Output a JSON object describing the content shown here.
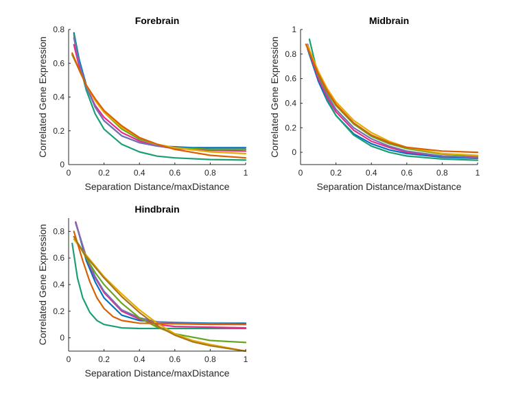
{
  "chart_data": [
    {
      "type": "line",
      "title": "Forebrain",
      "xlabel": "Separation Distance/maxDistance",
      "ylabel": "Correlated Gene Expression",
      "xlim": [
        0,
        1
      ],
      "ylim": [
        0,
        0.8
      ],
      "xticks": [
        "0",
        "0.2",
        "0.4",
        "0.6",
        "0.8",
        "1"
      ],
      "yticks": [
        "0",
        "0.2",
        "0.4",
        "0.6",
        "0.8"
      ],
      "grid": false,
      "series": [
        {
          "color": "#0072BD",
          "values": [
            [
              0.03,
              0.78
            ],
            [
              0.06,
              0.62
            ],
            [
              0.1,
              0.47
            ],
            [
              0.15,
              0.34
            ],
            [
              0.2,
              0.26
            ],
            [
              0.3,
              0.17
            ],
            [
              0.4,
              0.13
            ],
            [
              0.5,
              0.11
            ],
            [
              0.6,
              0.105
            ],
            [
              0.7,
              0.1
            ],
            [
              0.8,
              0.1
            ],
            [
              1.0,
              0.1
            ]
          ]
        },
        {
          "color": "#1B9E77",
          "values": [
            [
              0.03,
              0.77
            ],
            [
              0.06,
              0.6
            ],
            [
              0.1,
              0.44
            ],
            [
              0.15,
              0.3
            ],
            [
              0.2,
              0.21
            ],
            [
              0.3,
              0.12
            ],
            [
              0.4,
              0.075
            ],
            [
              0.5,
              0.05
            ],
            [
              0.6,
              0.04
            ],
            [
              0.8,
              0.03
            ],
            [
              1.0,
              0.027
            ]
          ]
        },
        {
          "color": "#E7298A",
          "values": [
            [
              0.03,
              0.71
            ],
            [
              0.06,
              0.58
            ],
            [
              0.1,
              0.46
            ],
            [
              0.15,
              0.35
            ],
            [
              0.2,
              0.28
            ],
            [
              0.3,
              0.19
            ],
            [
              0.4,
              0.14
            ],
            [
              0.5,
              0.11
            ],
            [
              0.6,
              0.095
            ],
            [
              0.8,
              0.085
            ],
            [
              1.0,
              0.08
            ]
          ]
        },
        {
          "color": "#7570B3",
          "values": [
            [
              0.03,
              0.75
            ],
            [
              0.06,
              0.6
            ],
            [
              0.1,
              0.46
            ],
            [
              0.15,
              0.34
            ],
            [
              0.2,
              0.26
            ],
            [
              0.3,
              0.17
            ],
            [
              0.4,
              0.13
            ],
            [
              0.5,
              0.11
            ],
            [
              0.6,
              0.1
            ],
            [
              0.8,
              0.09
            ],
            [
              1.0,
              0.09
            ]
          ]
        },
        {
          "color": "#66A61E",
          "values": [
            [
              0.02,
              0.65
            ],
            [
              0.06,
              0.56
            ],
            [
              0.1,
              0.47
            ],
            [
              0.15,
              0.38
            ],
            [
              0.2,
              0.31
            ],
            [
              0.3,
              0.21
            ],
            [
              0.4,
              0.15
            ],
            [
              0.5,
              0.12
            ],
            [
              0.6,
              0.1
            ],
            [
              0.8,
              0.09
            ],
            [
              1.0,
              0.09
            ]
          ]
        },
        {
          "color": "#E6AB02",
          "values": [
            [
              0.02,
              0.66
            ],
            [
              0.06,
              0.56
            ],
            [
              0.1,
              0.47
            ],
            [
              0.15,
              0.38
            ],
            [
              0.2,
              0.31
            ],
            [
              0.3,
              0.22
            ],
            [
              0.4,
              0.16
            ],
            [
              0.5,
              0.12
            ],
            [
              0.6,
              0.1
            ],
            [
              0.8,
              0.075
            ],
            [
              1.0,
              0.065
            ]
          ]
        },
        {
          "color": "#D95F02",
          "values": [
            [
              0.02,
              0.66
            ],
            [
              0.06,
              0.56
            ],
            [
              0.1,
              0.47
            ],
            [
              0.15,
              0.39
            ],
            [
              0.2,
              0.32
            ],
            [
              0.3,
              0.23
            ],
            [
              0.4,
              0.16
            ],
            [
              0.5,
              0.12
            ],
            [
              0.6,
              0.09
            ],
            [
              0.8,
              0.055
            ],
            [
              1.0,
              0.04
            ]
          ]
        }
      ]
    },
    {
      "type": "line",
      "title": "Midbrain",
      "xlabel": "Separation Distance/maxDistance",
      "ylabel": "Correlated Gene Expression",
      "xlim": [
        0,
        1
      ],
      "ylim": [
        -0.1,
        1
      ],
      "xticks": [
        "0",
        "0.2",
        "0.4",
        "0.6",
        "0.8",
        "1"
      ],
      "yticks": [
        "0",
        "0.2",
        "0.4",
        "0.6",
        "0.8",
        "1"
      ],
      "grid": false,
      "series": [
        {
          "color": "#0072BD",
          "values": [
            [
              0.04,
              0.84
            ],
            [
              0.1,
              0.58
            ],
            [
              0.15,
              0.42
            ],
            [
              0.2,
              0.3
            ],
            [
              0.3,
              0.15
            ],
            [
              0.4,
              0.07
            ],
            [
              0.5,
              0.02
            ],
            [
              0.6,
              -0.01
            ],
            [
              0.8,
              -0.04
            ],
            [
              1.0,
              -0.05
            ]
          ]
        },
        {
          "color": "#1B9E77",
          "values": [
            [
              0.05,
              0.92
            ],
            [
              0.1,
              0.62
            ],
            [
              0.15,
              0.43
            ],
            [
              0.2,
              0.3
            ],
            [
              0.3,
              0.14
            ],
            [
              0.4,
              0.05
            ],
            [
              0.5,
              0.0
            ],
            [
              0.6,
              -0.03
            ],
            [
              0.8,
              -0.055
            ],
            [
              1.0,
              -0.065
            ]
          ]
        },
        {
          "color": "#E7298A",
          "values": [
            [
              0.04,
              0.86
            ],
            [
              0.1,
              0.6
            ],
            [
              0.15,
              0.45
            ],
            [
              0.2,
              0.33
            ],
            [
              0.3,
              0.18
            ],
            [
              0.4,
              0.09
            ],
            [
              0.5,
              0.04
            ],
            [
              0.6,
              0.0
            ],
            [
              0.8,
              -0.03
            ],
            [
              1.0,
              -0.04
            ]
          ]
        },
        {
          "color": "#7570B3",
          "values": [
            [
              0.04,
              0.88
            ],
            [
              0.1,
              0.62
            ],
            [
              0.15,
              0.47
            ],
            [
              0.2,
              0.35
            ],
            [
              0.3,
              0.2
            ],
            [
              0.4,
              0.11
            ],
            [
              0.5,
              0.05
            ],
            [
              0.6,
              0.01
            ],
            [
              0.8,
              -0.03
            ],
            [
              1.0,
              -0.045
            ]
          ]
        },
        {
          "color": "#66A61E",
          "values": [
            [
              0.04,
              0.86
            ],
            [
              0.1,
              0.63
            ],
            [
              0.15,
              0.49
            ],
            [
              0.2,
              0.38
            ],
            [
              0.3,
              0.23
            ],
            [
              0.4,
              0.13
            ],
            [
              0.5,
              0.07
            ],
            [
              0.6,
              0.03
            ],
            [
              0.8,
              -0.015
            ],
            [
              1.0,
              -0.03
            ]
          ]
        },
        {
          "color": "#E6AB02",
          "values": [
            [
              0.04,
              0.87
            ],
            [
              0.1,
              0.66
            ],
            [
              0.15,
              0.52
            ],
            [
              0.2,
              0.41
            ],
            [
              0.3,
              0.26
            ],
            [
              0.4,
              0.16
            ],
            [
              0.5,
              0.09
            ],
            [
              0.6,
              0.04
            ],
            [
              0.8,
              -0.01
            ],
            [
              1.0,
              -0.025
            ]
          ]
        },
        {
          "color": "#D95F02",
          "values": [
            [
              0.03,
              0.88
            ],
            [
              0.1,
              0.64
            ],
            [
              0.15,
              0.5
            ],
            [
              0.2,
              0.39
            ],
            [
              0.3,
              0.24
            ],
            [
              0.4,
              0.14
            ],
            [
              0.5,
              0.08
            ],
            [
              0.6,
              0.04
            ],
            [
              0.8,
              0.01
            ],
            [
              1.0,
              0.0
            ]
          ]
        }
      ]
    },
    {
      "type": "line",
      "title": "Hindbrain",
      "xlabel": "Separation Distance/maxDistance",
      "ylabel": "Correlated Gene Expression",
      "xlim": [
        0,
        1
      ],
      "ylim": [
        -0.1,
        0.9
      ],
      "xticks": [
        "0",
        "0.2",
        "0.4",
        "0.6",
        "0.8",
        "1"
      ],
      "yticks": [
        "0",
        "0.2",
        "0.4",
        "0.6",
        "0.8"
      ],
      "grid": false,
      "series": [
        {
          "color": "#0072BD",
          "values": [
            [
              0.04,
              0.87
            ],
            [
              0.1,
              0.58
            ],
            [
              0.15,
              0.42
            ],
            [
              0.2,
              0.3
            ],
            [
              0.3,
              0.17
            ],
            [
              0.4,
              0.13
            ],
            [
              0.5,
              0.12
            ],
            [
              0.6,
              0.115
            ],
            [
              0.8,
              0.11
            ],
            [
              1.0,
              0.11
            ]
          ]
        },
        {
          "color": "#1B9E77",
          "values": [
            [
              0.02,
              0.71
            ],
            [
              0.05,
              0.45
            ],
            [
              0.08,
              0.3
            ],
            [
              0.12,
              0.19
            ],
            [
              0.16,
              0.13
            ],
            [
              0.2,
              0.1
            ],
            [
              0.3,
              0.075
            ],
            [
              0.4,
              0.07
            ],
            [
              0.6,
              0.07
            ],
            [
              0.8,
              0.07
            ],
            [
              1.0,
              0.07
            ]
          ]
        },
        {
          "color": "#E7298A",
          "values": [
            [
              0.04,
              0.87
            ],
            [
              0.1,
              0.6
            ],
            [
              0.15,
              0.45
            ],
            [
              0.2,
              0.34
            ],
            [
              0.3,
              0.2
            ],
            [
              0.4,
              0.14
            ],
            [
              0.5,
              0.1
            ],
            [
              0.6,
              0.085
            ],
            [
              0.8,
              0.08
            ],
            [
              1.0,
              0.075
            ]
          ]
        },
        {
          "color": "#7570B3",
          "values": [
            [
              0.04,
              0.86
            ],
            [
              0.1,
              0.61
            ],
            [
              0.15,
              0.46
            ],
            [
              0.2,
              0.35
            ],
            [
              0.3,
              0.21
            ],
            [
              0.4,
              0.15
            ],
            [
              0.5,
              0.12
            ],
            [
              0.6,
              0.11
            ],
            [
              0.8,
              0.105
            ],
            [
              1.0,
              0.1
            ]
          ]
        },
        {
          "color": "#66A61E",
          "values": [
            [
              0.03,
              0.76
            ],
            [
              0.1,
              0.6
            ],
            [
              0.15,
              0.49
            ],
            [
              0.2,
              0.4
            ],
            [
              0.3,
              0.26
            ],
            [
              0.4,
              0.15
            ],
            [
              0.5,
              0.08
            ],
            [
              0.6,
              0.03
            ],
            [
              0.8,
              -0.02
            ],
            [
              1.0,
              -0.035
            ]
          ]
        },
        {
          "color": "#E6AB02",
          "values": [
            [
              0.03,
              0.74
            ],
            [
              0.1,
              0.62
            ],
            [
              0.2,
              0.46
            ],
            [
              0.3,
              0.33
            ],
            [
              0.4,
              0.21
            ],
            [
              0.5,
              0.11
            ],
            [
              0.6,
              0.03
            ],
            [
              0.7,
              -0.02
            ],
            [
              0.8,
              -0.05
            ],
            [
              1.0,
              -0.1
            ]
          ]
        },
        {
          "color": "#D95F02",
          "values": [
            [
              0.03,
              0.8
            ],
            [
              0.08,
              0.58
            ],
            [
              0.12,
              0.42
            ],
            [
              0.16,
              0.3
            ],
            [
              0.2,
              0.22
            ],
            [
              0.25,
              0.16
            ],
            [
              0.3,
              0.13
            ],
            [
              0.4,
              0.11
            ],
            [
              0.6,
              0.105
            ],
            [
              0.8,
              0.1
            ],
            [
              1.0,
              0.1
            ]
          ]
        },
        {
          "color": "#A6761D",
          "values": [
            [
              0.03,
              0.76
            ],
            [
              0.1,
              0.61
            ],
            [
              0.2,
              0.45
            ],
            [
              0.3,
              0.31
            ],
            [
              0.4,
              0.19
            ],
            [
              0.5,
              0.09
            ],
            [
              0.6,
              0.02
            ],
            [
              0.7,
              -0.03
            ],
            [
              0.8,
              -0.06
            ],
            [
              1.0,
              -0.1
            ]
          ]
        }
      ]
    }
  ]
}
